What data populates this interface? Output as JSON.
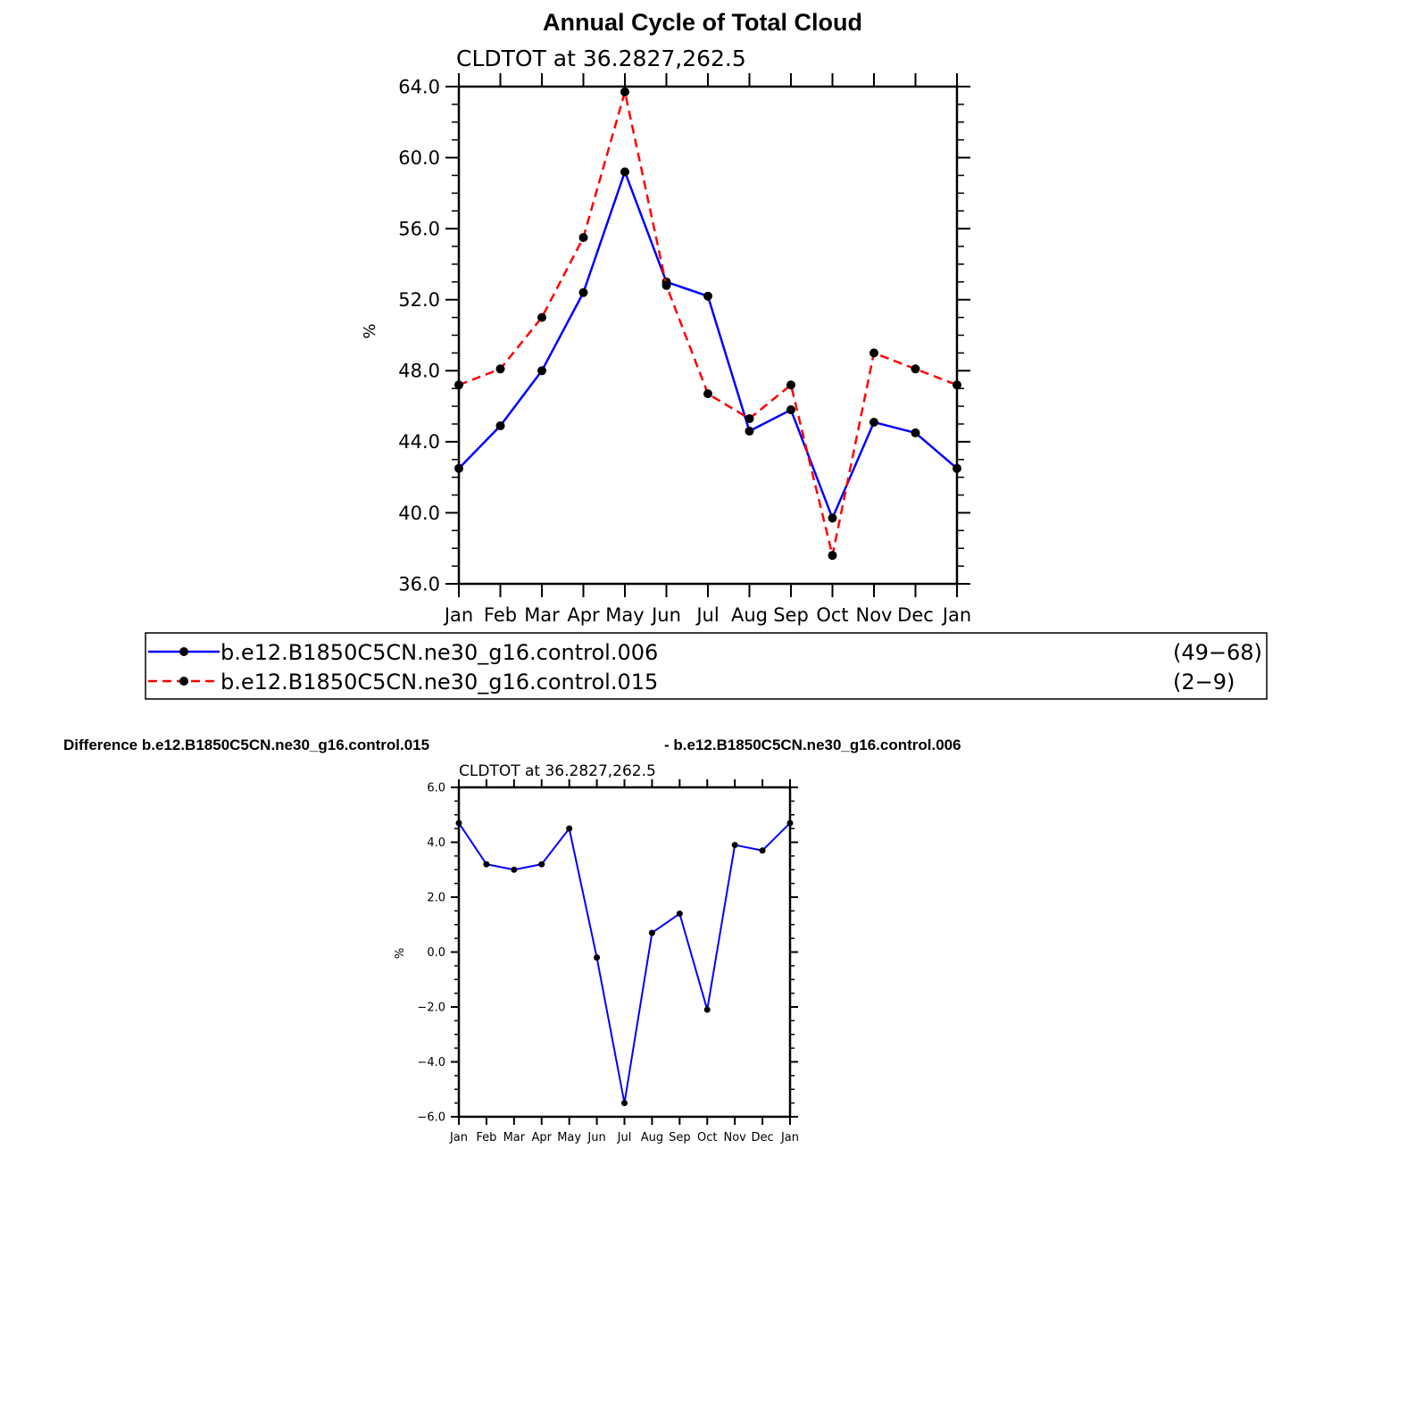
{
  "figure": {
    "title": "Annual Cycle of Total Cloud",
    "diff_title_left": "Difference b.e12.B1850C5CN.ne30_g16.control.015",
    "diff_title_right": "- b.e12.B1850C5CN.ne30_g16.control.006"
  },
  "chart_data": [
    {
      "type": "line",
      "subtitle": "CLDTOT at 36.2827,262.5",
      "ylabel": "%",
      "categories": [
        "Jan",
        "Feb",
        "Mar",
        "Apr",
        "May",
        "Jun",
        "Jul",
        "Aug",
        "Sep",
        "Oct",
        "Nov",
        "Dec",
        "Jan"
      ],
      "ylim": [
        36,
        64
      ],
      "yticks": [
        "36.0",
        "40.0",
        "44.0",
        "48.0",
        "52.0",
        "56.0",
        "60.0",
        "64.0"
      ],
      "series": [
        {
          "name": "b.e12.B1850C5CN.ne30_g16.control.006",
          "years": "(49−68)",
          "color": "#0000ff",
          "dash": "solid",
          "values": [
            42.5,
            44.9,
            48.0,
            52.4,
            59.2,
            53.0,
            52.2,
            44.6,
            45.8,
            39.7,
            45.1,
            44.5,
            42.5
          ]
        },
        {
          "name": "b.e12.B1850C5CN.ne30_g16.control.015",
          "years": "(2−9)",
          "color": "#ff0000",
          "dash": "dashed",
          "values": [
            47.2,
            48.1,
            51.0,
            55.5,
            63.7,
            52.8,
            46.7,
            45.3,
            47.2,
            37.6,
            49.0,
            48.1,
            47.2
          ]
        }
      ],
      "legend": "below"
    },
    {
      "type": "line",
      "subtitle": "CLDTOT at 36.2827,262.5",
      "ylabel": "%",
      "categories": [
        "Jan",
        "Feb",
        "Mar",
        "Apr",
        "May",
        "Jun",
        "Jul",
        "Aug",
        "Sep",
        "Oct",
        "Nov",
        "Dec",
        "Jan"
      ],
      "ylim": [
        -6,
        6
      ],
      "yticks": [
        "−6.0",
        "−4.0",
        "−2.0",
        "0.0",
        "2.0",
        "4.0",
        "6.0"
      ],
      "series": [
        {
          "color": "#0000ff",
          "values": [
            4.7,
            3.2,
            3.0,
            3.2,
            4.5,
            -0.2,
            -5.5,
            0.7,
            1.4,
            -2.1,
            3.9,
            3.7,
            4.7
          ]
        }
      ]
    }
  ]
}
